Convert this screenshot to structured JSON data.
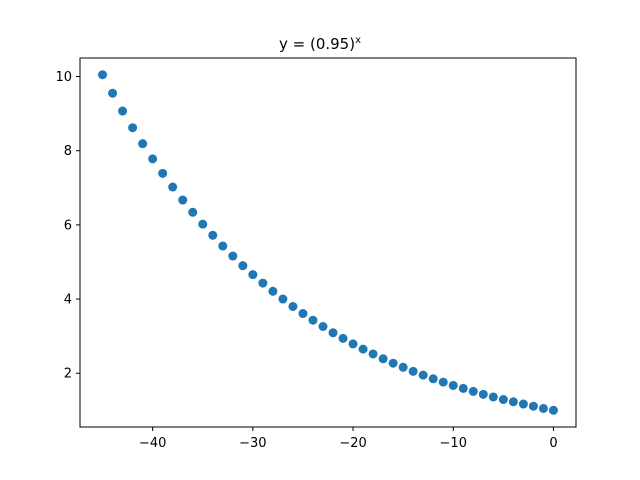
{
  "chart_data": {
    "type": "scatter",
    "title": "y = (0.95)",
    "title_superscript": "x",
    "xlabel": "",
    "ylabel": "",
    "xlim": [
      -47.25,
      2.25
    ],
    "ylim": [
      0.55,
      10.5
    ],
    "grid": false,
    "color": "#1f77b4",
    "x_ticks": [
      -40,
      -30,
      -20,
      -10,
      0
    ],
    "x_tick_labels": [
      "−40",
      "−30",
      "−20",
      "−10",
      "0"
    ],
    "y_ticks": [
      2,
      4,
      6,
      8,
      10
    ],
    "y_tick_labels": [
      "2",
      "4",
      "6",
      "8",
      "10"
    ],
    "x": [
      -45,
      -44,
      -43,
      -42,
      -41,
      -40,
      -39,
      -38,
      -37,
      -36,
      -35,
      -34,
      -33,
      -32,
      -31,
      -30,
      -29,
      -28,
      -27,
      -26,
      -25,
      -24,
      -23,
      -22,
      -21,
      -20,
      -19,
      -18,
      -17,
      -16,
      -15,
      -14,
      -13,
      -12,
      -11,
      -10,
      -9,
      -8,
      -7,
      -6,
      -5,
      -4,
      -3,
      -2,
      -1,
      0
    ],
    "y": [
      10.05,
      9.55,
      9.07,
      8.62,
      8.19,
      7.78,
      7.39,
      7.02,
      6.67,
      6.34,
      6.02,
      5.72,
      5.43,
      5.16,
      4.9,
      4.66,
      4.43,
      4.21,
      4.0,
      3.8,
      3.61,
      3.43,
      3.26,
      3.09,
      2.94,
      2.79,
      2.65,
      2.52,
      2.39,
      2.27,
      2.16,
      2.05,
      1.95,
      1.85,
      1.76,
      1.67,
      1.59,
      1.51,
      1.43,
      1.36,
      1.29,
      1.23,
      1.17,
      1.11,
      1.05,
      1.0
    ]
  }
}
